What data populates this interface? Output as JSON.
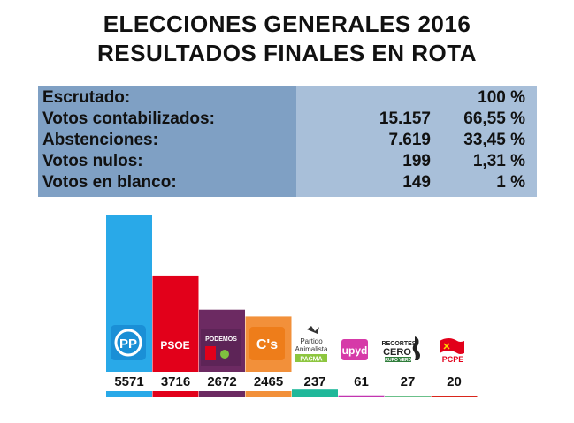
{
  "header": {
    "title_line1": "ELECCIONES GENERALES 2016",
    "title_line2": "RESULTADOS FINALES EN ROTA"
  },
  "stats": [
    {
      "label": "Escrutado:",
      "votes": "",
      "pct": "100 %"
    },
    {
      "label": "Votos contabilizados:",
      "votes": "15.157",
      "pct": "66,55 %"
    },
    {
      "label": "Abstenciones:",
      "votes": "7.619",
      "pct": "33,45 %"
    },
    {
      "label": "Votos nulos:",
      "votes": "199",
      "pct": "1,31 %"
    },
    {
      "label": "Votos en blanco:",
      "votes": "149",
      "pct": "1 %"
    }
  ],
  "logos": {
    "pp": "PP",
    "psoe": "PSOE",
    "podemos": "PODEMOS",
    "cs": "C's",
    "pacma_line1": "Partido",
    "pacma_line2": "Animalista",
    "pacma_line3": "PACMA",
    "upyd": "upyd",
    "recortes_line1": "RECORTES",
    "recortes_line2": "CERO",
    "recortes_line3": "GRUPO VERDE",
    "pcpe": "PCPE"
  },
  "chart_data": {
    "type": "bar",
    "title": "RESULTADOS FINALES EN ROTA",
    "categories": [
      "PP",
      "PSOE",
      "PODEMOS",
      "C's",
      "PACMA",
      "UPyD",
      "RECORTES CERO",
      "PCPE"
    ],
    "values": [
      5571,
      3716,
      2672,
      2465,
      237,
      61,
      27,
      20
    ],
    "labels": [
      "5571",
      "3716",
      "2672",
      "2465",
      "237",
      "61",
      "27",
      "20"
    ],
    "colors": [
      "#29a9e8",
      "#e2001a",
      "#6c2a62",
      "#f2903a",
      "#1fb89a",
      "#c235b0",
      "#6bc08a",
      "#d9261c"
    ],
    "ylim": [
      0,
      5571
    ],
    "xlabel": "",
    "ylabel": ""
  }
}
